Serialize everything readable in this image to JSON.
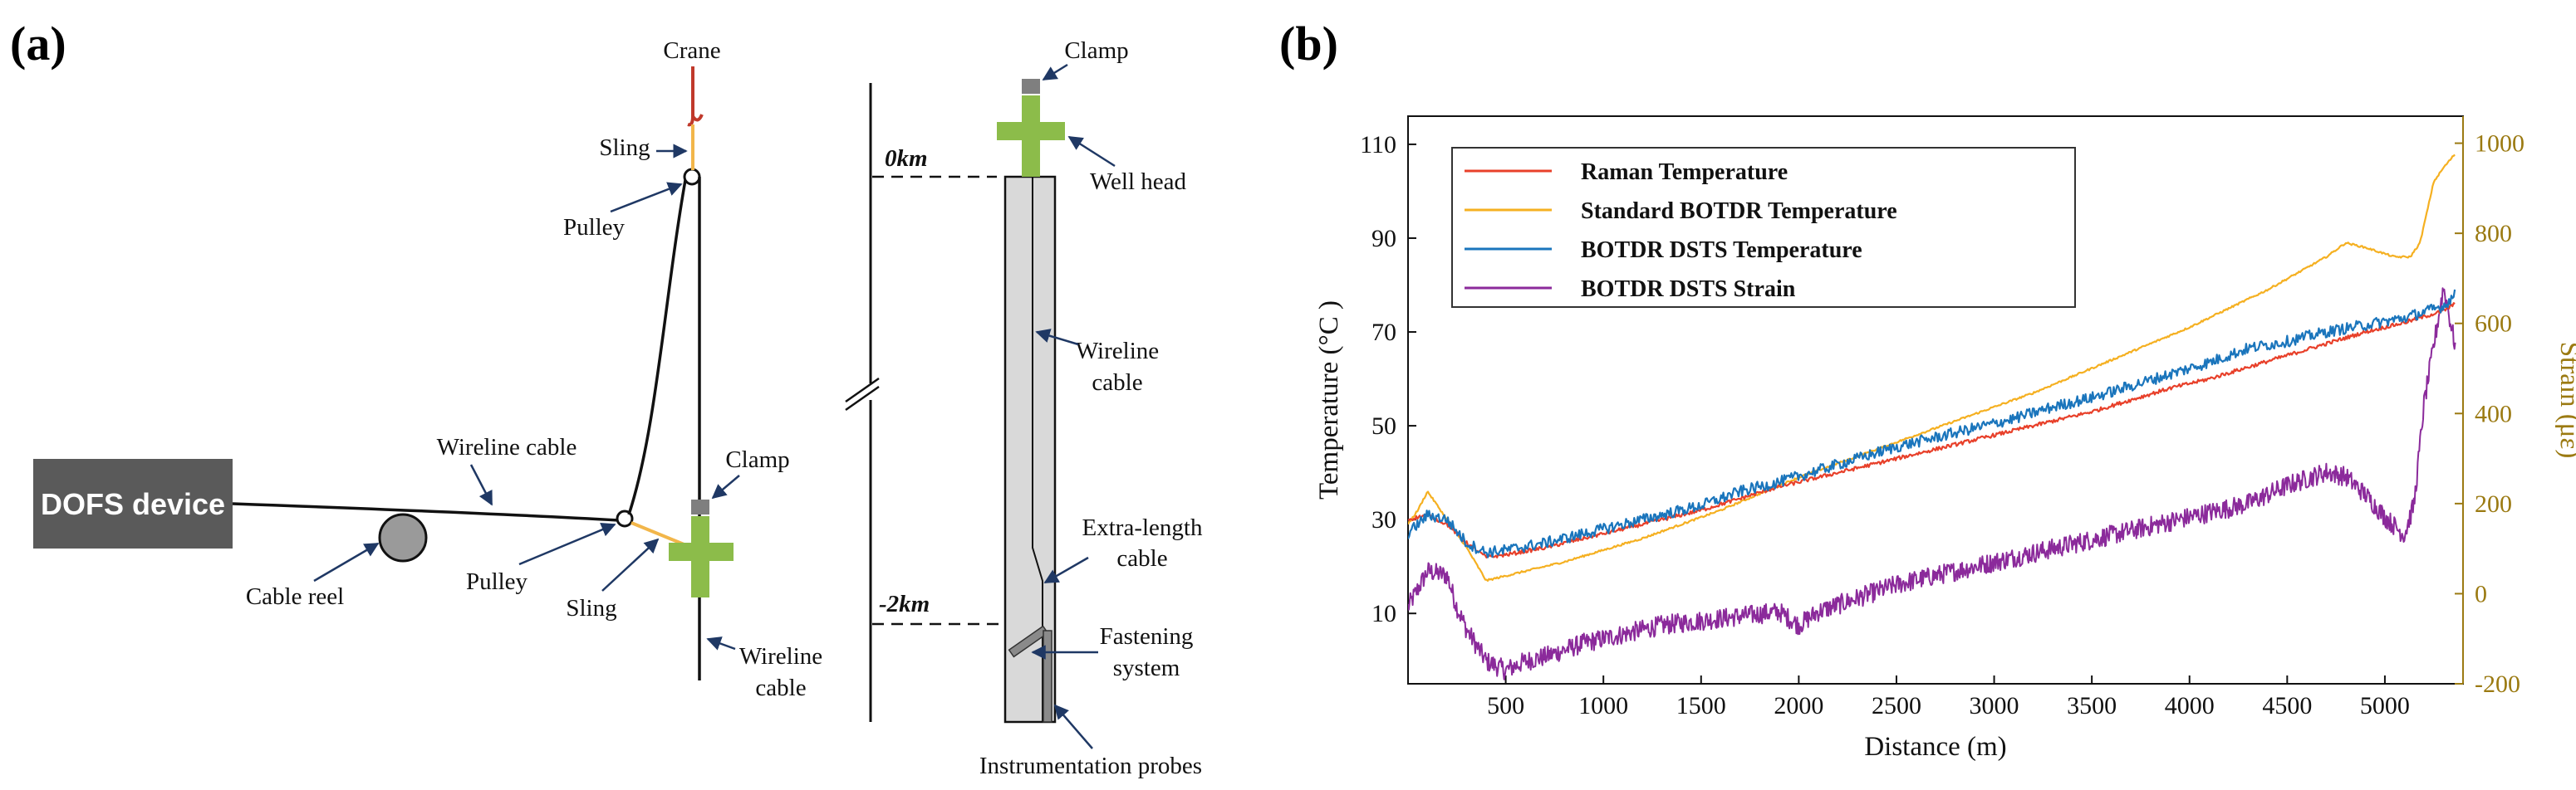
{
  "panel_a": {
    "panel_label": "(a)",
    "labels": {
      "crane": "Crane",
      "sling_top": "Sling",
      "pulley_top": "Pulley",
      "wireline_cable": "Wireline cable",
      "dofs_device": "DOFS device",
      "cable_reel": "Cable reel",
      "pulley_bottom": "Pulley",
      "sling_bottom": "Sling",
      "clamp_left": "Clamp",
      "wireline_cable_right_1": "Wireline",
      "wireline_cable_right_2": "cable",
      "clamp_top": "Clamp",
      "well_head": "Well head",
      "depth_0": "0km",
      "depth_2": "-2km",
      "wireline_cable_well_1": "Wireline",
      "wireline_cable_well_2": "cable",
      "extra_length_1": "Extra-length",
      "extra_length_2": "cable",
      "fastening_1": "Fastening",
      "fastening_2": "system",
      "instrumentation_probes": "Instrumentation probes"
    },
    "colors": {
      "device": "#5a5a5a",
      "clamp": "#7f7f7f",
      "wellhead": "#8cbc4a",
      "borehole": "#d9d9d9",
      "sling": "#f2b64a",
      "crane": "#c0392b",
      "arrow": "#1f3864"
    }
  },
  "panel_b": {
    "panel_label": "(b)"
  },
  "chart_data": {
    "type": "line",
    "xlabel": "Distance (m)",
    "ylabel": "Temperature (°C )",
    "y2label": "Strain (με)",
    "xlim": [
      0,
      5400
    ],
    "ylim": [
      -5,
      116
    ],
    "y2lim": [
      -200,
      1060
    ],
    "x_ticks": [
      500,
      1000,
      1500,
      2000,
      2500,
      3000,
      3500,
      4000,
      4500,
      5000
    ],
    "y_ticks": [
      10,
      30,
      50,
      70,
      90,
      110
    ],
    "y2_ticks": [
      -200,
      0,
      200,
      400,
      600,
      800,
      1000
    ],
    "legend_position": "top-left",
    "grid": false,
    "series": [
      {
        "name": "Raman Temperature",
        "axis": "left",
        "color": "#e8402a",
        "noise": 0.4,
        "x": [
          0,
          100,
          200,
          300,
          400,
          500,
          700,
          900,
          1100,
          1300,
          1500,
          1700,
          1900,
          2100,
          2300,
          2500,
          2700,
          2900,
          3100,
          3300,
          3500,
          3700,
          3900,
          4100,
          4300,
          4500,
          4700,
          4900,
          5100,
          5300,
          5360
        ],
        "y": [
          30,
          31,
          29,
          25,
          22,
          22.5,
          24,
          26,
          28,
          30,
          32,
          34.5,
          37,
          39,
          41,
          43,
          45,
          47,
          49,
          51,
          53,
          55.5,
          58,
          60,
          62.5,
          65,
          67.5,
          70,
          72,
          74.5,
          76
        ]
      },
      {
        "name": "Standard BOTDR Temperature",
        "axis": "left",
        "color": "#f5b021",
        "noise": 0.2,
        "x": [
          0,
          50,
          100,
          150,
          200,
          300,
          400,
          500,
          800,
          1200,
          1600,
          2000,
          2400,
          2800,
          3200,
          3600,
          4000,
          4400,
          4700,
          4800,
          4900,
          5050,
          5130,
          5180,
          5250,
          5300,
          5360
        ],
        "y": [
          29,
          32,
          36,
          33,
          30,
          24,
          17,
          18,
          21,
          26,
          32,
          39,
          45,
          51,
          57,
          64,
          71,
          79,
          86,
          89,
          88,
          86,
          86,
          89,
          102,
          105,
          108
        ]
      },
      {
        "name": "BOTDR DSTS Temperature",
        "axis": "left",
        "color": "#1a75bc",
        "noise": 1.2,
        "x": [
          0,
          100,
          200,
          300,
          400,
          500,
          700,
          900,
          1100,
          1300,
          1500,
          1700,
          1900,
          2100,
          2300,
          2500,
          2700,
          2900,
          3100,
          3300,
          3500,
          3700,
          3900,
          4100,
          4300,
          4500,
          4700,
          4900,
          5100,
          5300,
          5360
        ],
        "y": [
          27,
          31,
          30,
          25,
          23,
          23.5,
          25,
          27,
          29,
          31,
          33,
          36,
          38,
          40.5,
          43,
          45.5,
          47.5,
          49.5,
          51.5,
          54,
          56,
          58.5,
          61,
          63.5,
          66.5,
          68,
          70,
          71.5,
          73,
          75.5,
          78
        ]
      },
      {
        "name": "BOTDR DSTS Strain",
        "axis": "right",
        "color": "#8b2a9b",
        "noise": 22,
        "x": [
          0,
          100,
          200,
          250,
          300,
          400,
          500,
          600,
          700,
          900,
          1100,
          1300,
          1500,
          1700,
          1900,
          2000,
          2100,
          2300,
          2500,
          2700,
          2900,
          3100,
          3300,
          3500,
          3700,
          3900,
          4100,
          4300,
          4500,
          4700,
          4800,
          4900,
          5000,
          5100,
          5150,
          5200,
          5300,
          5360
        ],
        "y": [
          -30,
          50,
          40,
          -30,
          -80,
          -150,
          -170,
          -150,
          -140,
          -110,
          -90,
          -70,
          -60,
          -50,
          -40,
          -70,
          -40,
          -10,
          20,
          40,
          60,
          80,
          100,
          120,
          140,
          160,
          180,
          200,
          240,
          270,
          260,
          220,
          170,
          130,
          200,
          420,
          680,
          550
        ]
      }
    ]
  }
}
